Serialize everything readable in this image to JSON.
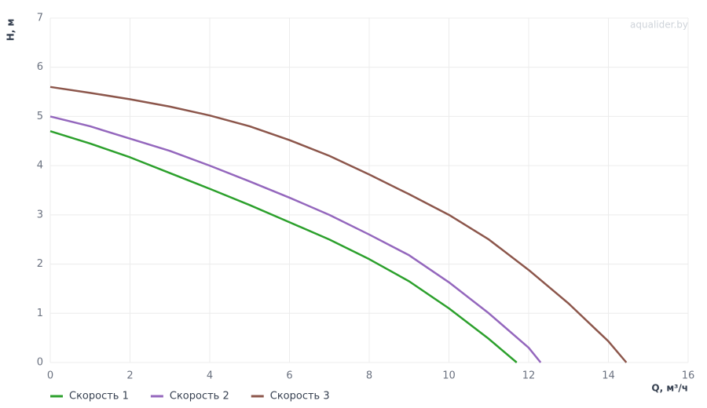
{
  "chart_data": {
    "type": "line",
    "y_label": "H, м",
    "x_label": "Q, м³/ч",
    "watermark": "aqualider.by",
    "xlim": [
      0,
      16
    ],
    "xticks": [
      0,
      2,
      4,
      6,
      8,
      10,
      12,
      14,
      16
    ],
    "ylim": [
      0,
      7
    ],
    "yticks": [
      0,
      1,
      2,
      3,
      4,
      5,
      6,
      7
    ],
    "grid": true,
    "legend": "bottom-left",
    "series": [
      {
        "name": "Скорость 1",
        "color": "#2ca02c",
        "x": [
          0,
          1,
          2,
          3,
          4,
          5,
          6,
          7,
          8,
          9,
          10,
          11,
          11.7
        ],
        "values": [
          4.7,
          4.45,
          4.17,
          3.85,
          3.53,
          3.2,
          2.85,
          2.5,
          2.1,
          1.65,
          1.1,
          0.48,
          0
        ]
      },
      {
        "name": "Скорость 2",
        "color": "#9467bd",
        "x": [
          0,
          1,
          2,
          3,
          4,
          5,
          6,
          7,
          8,
          9,
          10,
          11,
          12,
          12.3
        ],
        "values": [
          5.0,
          4.8,
          4.55,
          4.3,
          4.0,
          3.68,
          3.35,
          3.0,
          2.6,
          2.18,
          1.63,
          1.0,
          0.3,
          0
        ]
      },
      {
        "name": "Скорость 3",
        "color": "#8c564b",
        "x": [
          0,
          1,
          2,
          3,
          4,
          5,
          6,
          7,
          8,
          9,
          10,
          11,
          12,
          13,
          14,
          14.45
        ],
        "values": [
          5.6,
          5.48,
          5.35,
          5.2,
          5.02,
          4.8,
          4.52,
          4.2,
          3.82,
          3.42,
          3.0,
          2.5,
          1.88,
          1.2,
          0.43,
          0
        ]
      }
    ]
  }
}
